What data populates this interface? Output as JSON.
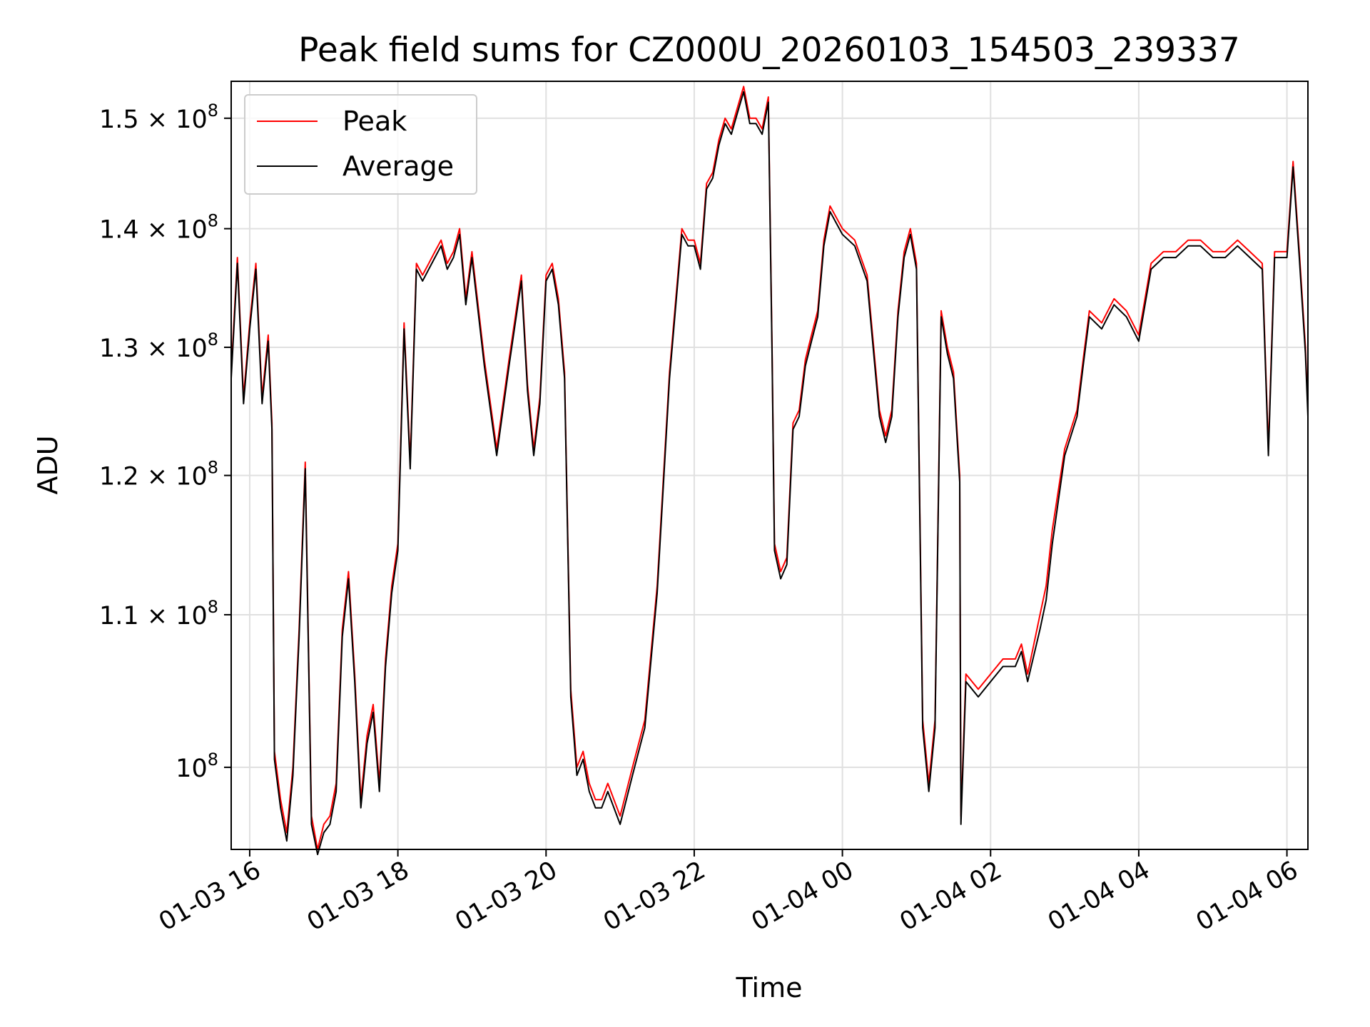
{
  "chart_data": {
    "type": "line",
    "title": "Peak field sums for CZ000U_20260103_154503_239337",
    "xlabel": "Time",
    "ylabel": "ADU",
    "y_scale": "log",
    "xlim": [
      "01-03 15:45",
      "01-04 06:17"
    ],
    "ylim": [
      95000000,
      153500000
    ],
    "grid": true,
    "legend_position": "top-left",
    "x_ticks": [
      "01-03 16",
      "01-03 18",
      "01-03 20",
      "01-03 22",
      "01-04 00",
      "01-04 02",
      "01-04 04",
      "01-04 06"
    ],
    "y_ticks": [
      {
        "value": 100000000,
        "mantissa": "",
        "exponent": "8"
      },
      {
        "value": 110000000,
        "mantissa": "1.1",
        "exponent": "8"
      },
      {
        "value": 120000000,
        "mantissa": "1.2",
        "exponent": "8"
      },
      {
        "value": 130000000,
        "mantissa": "1.3",
        "exponent": "8"
      },
      {
        "value": 140000000,
        "mantissa": "1.4",
        "exponent": "8"
      },
      {
        "value": 150000000,
        "mantissa": "1.5",
        "exponent": "8"
      }
    ],
    "series": [
      {
        "name": "Peak",
        "color": "#ff0000"
      },
      {
        "name": "Average",
        "color": "#000000"
      }
    ],
    "x": [
      "15:45",
      "15:50",
      "15:55",
      "16:00",
      "16:05",
      "16:10",
      "16:15",
      "16:18",
      "16:20",
      "16:25",
      "16:30",
      "16:35",
      "16:40",
      "16:45",
      "16:50",
      "16:55",
      "17:00",
      "17:05",
      "17:10",
      "17:15",
      "17:20",
      "17:25",
      "17:30",
      "17:35",
      "17:40",
      "17:45",
      "17:50",
      "17:55",
      "18:00",
      "18:05",
      "18:10",
      "18:15",
      "18:20",
      "18:25",
      "18:30",
      "18:35",
      "18:40",
      "18:45",
      "18:50",
      "18:55",
      "19:00",
      "19:10",
      "19:20",
      "19:30",
      "19:40",
      "19:45",
      "19:50",
      "19:55",
      "20:00",
      "20:05",
      "20:10",
      "20:15",
      "20:20",
      "20:25",
      "20:30",
      "20:35",
      "20:40",
      "20:45",
      "20:50",
      "21:00",
      "21:10",
      "21:20",
      "21:30",
      "21:40",
      "21:50",
      "21:55",
      "22:00",
      "22:05",
      "22:10",
      "22:15",
      "22:20",
      "22:25",
      "22:30",
      "22:35",
      "22:40",
      "22:45",
      "22:50",
      "22:55",
      "23:00",
      "23:03",
      "23:05",
      "23:10",
      "23:15",
      "23:20",
      "23:25",
      "23:30",
      "23:35",
      "23:40",
      "23:45",
      "23:50",
      "23:55",
      "00:00",
      "00:10",
      "00:20",
      "00:30",
      "00:35",
      "00:40",
      "00:45",
      "00:50",
      "00:55",
      "01:00",
      "01:05",
      "01:10",
      "01:15",
      "01:20",
      "01:25",
      "01:30",
      "01:35",
      "01:36",
      "01:40",
      "01:50",
      "02:00",
      "02:10",
      "02:20",
      "02:25",
      "02:30",
      "02:40",
      "02:45",
      "02:50",
      "03:00",
      "03:10",
      "03:15",
      "03:20",
      "03:30",
      "03:40",
      "03:50",
      "04:00",
      "04:10",
      "04:20",
      "04:30",
      "04:40",
      "04:50",
      "05:00",
      "05:10",
      "05:20",
      "05:30",
      "05:40",
      "05:45",
      "05:50",
      "06:00",
      "06:05",
      "06:10",
      "06:15",
      "06:17"
    ],
    "peak": [
      128000000,
      137500000,
      126000000,
      132000000,
      137000000,
      126000000,
      131000000,
      124000000,
      101000000,
      98000000,
      96000000,
      100000000,
      109000000,
      121000000,
      97000000,
      95000000,
      96500000,
      97000000,
      99000000,
      109000000,
      113000000,
      106000000,
      98000000,
      102000000,
      104000000,
      99000000,
      107000000,
      112000000,
      115000000,
      132000000,
      121000000,
      137000000,
      136000000,
      137000000,
      138000000,
      139000000,
      137000000,
      138000000,
      140000000,
      134000000,
      138000000,
      129000000,
      122000000,
      129000000,
      136000000,
      127000000,
      122000000,
      126000000,
      136000000,
      137000000,
      134000000,
      128000000,
      105000000,
      100000000,
      101000000,
      99000000,
      98000000,
      98000000,
      99000000,
      97000000,
      100000000,
      103000000,
      112000000,
      128000000,
      140000000,
      139000000,
      139000000,
      137000000,
      144000000,
      145000000,
      148000000,
      150000000,
      149000000,
      151000000,
      153000000,
      150000000,
      150000000,
      149000000,
      152000000,
      130000000,
      115000000,
      113000000,
      114000000,
      124000000,
      125000000,
      129000000,
      131000000,
      133000000,
      139000000,
      142000000,
      141000000,
      140000000,
      139000000,
      136000000,
      125000000,
      123000000,
      125000000,
      133000000,
      138000000,
      140000000,
      137000000,
      103000000,
      99000000,
      103000000,
      133000000,
      130000000,
      128000000,
      120000000,
      97000000,
      106000000,
      105000000,
      106000000,
      107000000,
      107000000,
      108000000,
      106000000,
      110000000,
      112000000,
      116000000,
      122000000,
      125000000,
      129000000,
      133000000,
      132000000,
      134000000,
      133000000,
      131000000,
      137000000,
      138000000,
      138000000,
      139000000,
      139000000,
      138000000,
      138000000,
      139000000,
      138000000,
      137000000,
      122000000,
      138000000,
      138000000,
      146000000,
      138000000,
      130000000,
      125000000
    ],
    "average": [
      127500000,
      137000000,
      125500000,
      131500000,
      136500000,
      125500000,
      130500000,
      123500000,
      100500000,
      97500000,
      95500000,
      99500000,
      108500000,
      120500000,
      96500000,
      94700000,
      96000000,
      96500000,
      98500000,
      108500000,
      112500000,
      105500000,
      97500000,
      101500000,
      103500000,
      98500000,
      106500000,
      111500000,
      114500000,
      131500000,
      120500000,
      136500000,
      135500000,
      136500000,
      137500000,
      138500000,
      136500000,
      137500000,
      139500000,
      133500000,
      137500000,
      128500000,
      121500000,
      128500000,
      135500000,
      126500000,
      121500000,
      125500000,
      135500000,
      136500000,
      133500000,
      127500000,
      104500000,
      99500000,
      100500000,
      98500000,
      97500000,
      97500000,
      98500000,
      96500000,
      99500000,
      102500000,
      111500000,
      127500000,
      139500000,
      138500000,
      138500000,
      136500000,
      143500000,
      144500000,
      147500000,
      149500000,
      148500000,
      150500000,
      152500000,
      149500000,
      149500000,
      148500000,
      151500000,
      129500000,
      114500000,
      112500000,
      113500000,
      123500000,
      124500000,
      128500000,
      130500000,
      132500000,
      138500000,
      141500000,
      140500000,
      139500000,
      138500000,
      135500000,
      124500000,
      122500000,
      124500000,
      132500000,
      137500000,
      139500000,
      136500000,
      102500000,
      98500000,
      102500000,
      132500000,
      129500000,
      127500000,
      119500000,
      96500000,
      105500000,
      104500000,
      105500000,
      106500000,
      106500000,
      107500000,
      105500000,
      109000000,
      111000000,
      115000000,
      121500000,
      124500000,
      128500000,
      132500000,
      131500000,
      133500000,
      132500000,
      130500000,
      136500000,
      137500000,
      137500000,
      138500000,
      138500000,
      137500000,
      137500000,
      138500000,
      137500000,
      136500000,
      121500000,
      137500000,
      137500000,
      145500000,
      137500000,
      129500000,
      124500000
    ]
  }
}
